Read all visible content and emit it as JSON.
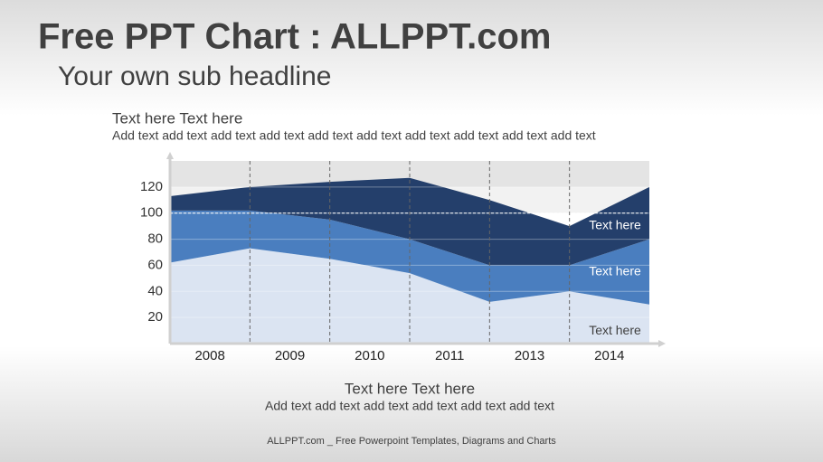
{
  "header": {
    "title": "Free PPT Chart : ALLPPT.com",
    "subtitle": "Your own sub headline"
  },
  "chart_data": {
    "type": "stacked_area",
    "title": "Text here Text here",
    "subtitle": "Add text add text add text add text add text add text add text add text add text add text",
    "x_band_labels": [
      "2008",
      "2009",
      "2010",
      "2011",
      "2013",
      "2014"
    ],
    "series": [
      {
        "name": "Text here",
        "color": "#dbe4f2",
        "values": [
          62,
          73,
          65,
          54,
          32,
          40,
          30
        ]
      },
      {
        "name": "Text here",
        "color": "#4a7ebf",
        "values": [
          40,
          29,
          30,
          26,
          28,
          20,
          50
        ]
      },
      {
        "name": "Text here",
        "color": "#243f6b",
        "values": [
          11,
          18,
          29,
          47,
          50,
          30,
          40
        ]
      }
    ],
    "ylim": [
      0,
      140
    ],
    "yticks": [
      20,
      40,
      60,
      80,
      100,
      120
    ],
    "reference_line": 100,
    "grid": true
  },
  "bottom": {
    "title": "Text here Text here",
    "text": "Add text add text add text add text add text add text"
  },
  "footer": "ALLPPT.com _ Free Powerpoint Templates, Diagrams and Charts"
}
